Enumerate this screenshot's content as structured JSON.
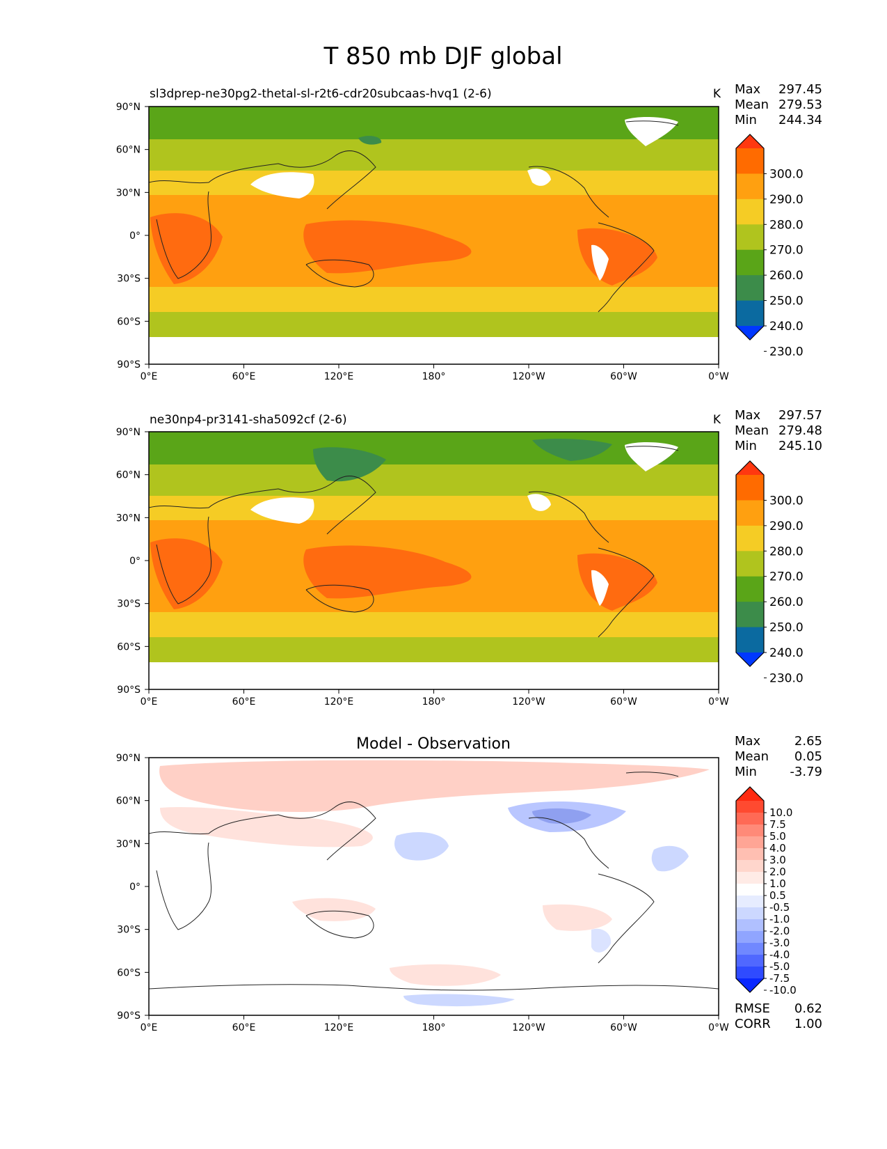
{
  "figure": {
    "title": "T 850 mb DJF global"
  },
  "chart_data": [
    {
      "type": "heatmap",
      "title": "sl3dprep-ne30pg2-thetal-sl-r2t6-cdr20subcaas-hvq1 (2-6)",
      "units": "K",
      "stats": {
        "max_label": "Max",
        "max": "297.45",
        "mean_label": "Mean",
        "mean": "279.53",
        "min_label": "Min",
        "min": "244.34"
      },
      "xticks": [
        "0°E",
        "60°E",
        "120°E",
        "180°",
        "120°W",
        "60°W",
        "0°W"
      ],
      "yticks": [
        "90°N",
        "60°N",
        "30°N",
        "0°",
        "30°S",
        "60°S",
        "90°S"
      ],
      "xlim": [
        0,
        360
      ],
      "ylim": [
        -90,
        90
      ],
      "colorbar": {
        "levels": [
          "300.0",
          "290.0",
          "280.0",
          "270.0",
          "260.0",
          "250.0",
          "240.0",
          "230.0"
        ],
        "colors": [
          "#ff3810",
          "#ff6b00",
          "#ffa010",
          "#f5cc25",
          "#b0c41e",
          "#5aa518",
          "#3c8c4a",
          "#0b6aa0",
          "#0038ff"
        ],
        "extend": "both"
      },
      "fill": {
        "colors": [
          "#ff6b10",
          "#ffa010",
          "#f5cc25",
          "#b0c41e",
          "#5aa518",
          "#3c8c4a"
        ]
      }
    },
    {
      "type": "heatmap",
      "title": "ne30np4-pr3141-sha5092cf (2-6)",
      "units": "K",
      "stats": {
        "max_label": "Max",
        "max": "297.57",
        "mean_label": "Mean",
        "mean": "279.48",
        "min_label": "Min",
        "min": "245.10"
      },
      "xticks": [
        "0°E",
        "60°E",
        "120°E",
        "180°",
        "120°W",
        "60°W",
        "0°W"
      ],
      "yticks": [
        "90°N",
        "60°N",
        "30°N",
        "0°",
        "30°S",
        "60°S",
        "90°S"
      ],
      "xlim": [
        0,
        360
      ],
      "ylim": [
        -90,
        90
      ],
      "colorbar": {
        "levels": [
          "300.0",
          "290.0",
          "280.0",
          "270.0",
          "260.0",
          "250.0",
          "240.0",
          "230.0"
        ],
        "colors": [
          "#ff3810",
          "#ff6b00",
          "#ffa010",
          "#f5cc25",
          "#b0c41e",
          "#5aa518",
          "#3c8c4a",
          "#0b6aa0",
          "#0038ff"
        ],
        "extend": "both"
      },
      "fill": {
        "colors": [
          "#ff6b10",
          "#ffa010",
          "#f5cc25",
          "#b0c41e",
          "#5aa518",
          "#3c8c4a"
        ]
      }
    },
    {
      "type": "heatmap",
      "title": "Model - Observation",
      "units": "",
      "stats": {
        "max_label": "Max",
        "max": "2.65",
        "mean_label": "Mean",
        "mean": "0.05",
        "min_label": "Min",
        "min": "-3.79"
      },
      "metrics": {
        "rmse_label": "RMSE",
        "rmse": "0.62",
        "corr_label": "CORR",
        "corr": "1.00"
      },
      "xticks": [
        "0°E",
        "60°E",
        "120°E",
        "180°",
        "120°W",
        "60°W",
        "0°W"
      ],
      "yticks": [
        "90°N",
        "60°N",
        "30°N",
        "0°",
        "30°S",
        "60°S",
        "90°S"
      ],
      "xlim": [
        0,
        360
      ],
      "ylim": [
        -90,
        90
      ],
      "colorbar": {
        "levels": [
          "10.0",
          "7.5",
          "5.0",
          "4.0",
          "3.0",
          "2.0",
          "1.0",
          "0.5",
          "-0.5",
          "-1.0",
          "-2.0",
          "-3.0",
          "-4.0",
          "-5.0",
          "-7.5",
          "-10.0"
        ],
        "colors": [
          "#ff2a10",
          "#ff4a30",
          "#ff6a55",
          "#ff8a78",
          "#ffa595",
          "#ffbfb2",
          "#ffd6cc",
          "#ffebe6",
          "#ffffff",
          "#e6ecff",
          "#ccd8ff",
          "#b0c0ff",
          "#90a5ff",
          "#7088ff",
          "#5068ff",
          "#2f4bff",
          "#0a28ff"
        ],
        "extend": "both"
      },
      "fill": {
        "colors": [
          "#ffd0c6",
          "#ffe2dc",
          "#dbe3ff",
          "#b9c6ff",
          "#8fa0f0"
        ]
      }
    }
  ]
}
